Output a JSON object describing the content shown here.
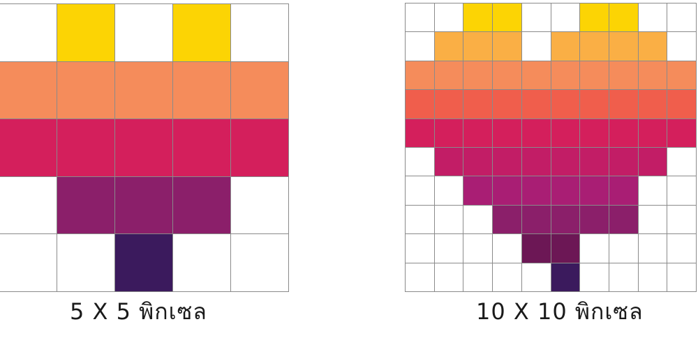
{
  "palette": {
    "0": "#ffffff",
    "Y": "#fcd404",
    "L": "#faaf45",
    "O": "#f58c5b",
    "R": "#f05e4c",
    "P": "#d41f5c",
    "M": "#c21d66",
    "V": "#a91e74",
    "U": "#8b1f6a",
    "W": "#6c1755",
    "N": "#3b1a5d"
  },
  "grid_small": {
    "caption": "5 X 5 พิกเซล",
    "size": 5,
    "rows": [
      "0Y0Y0",
      "OOOOO",
      "PPPPP",
      "0UUU0",
      "00N00"
    ]
  },
  "grid_large": {
    "caption": "10 X 10 พิกเซล",
    "size": 10,
    "rows": [
      "00YY00YY00",
      "0LLL0LLLL0",
      "OOOOOOOOOO",
      "RRRRRRRRRR",
      "PPPPPPPPPP",
      "0MMMMMMMM0",
      "00VVVVVV00",
      "000UUUUU00",
      "0000WW0000",
      "00000N0000"
    ]
  }
}
